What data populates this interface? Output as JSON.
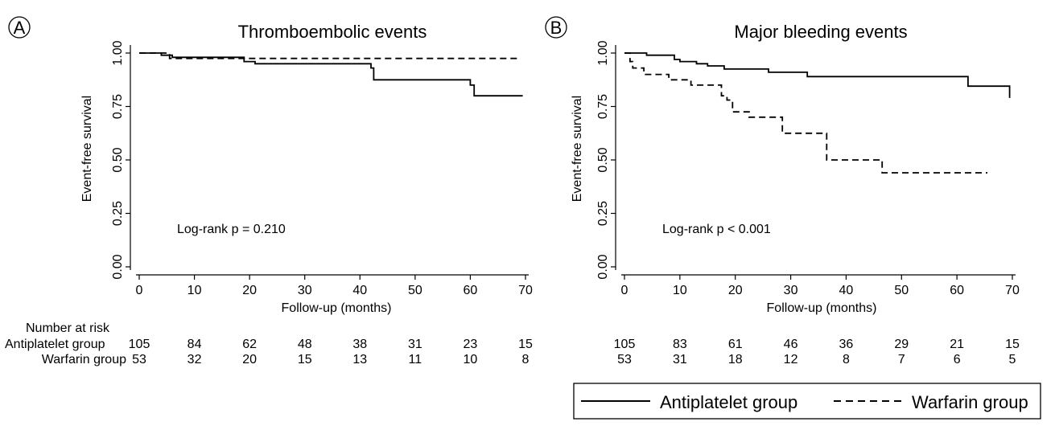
{
  "panel_labels": [
    "A",
    "B"
  ],
  "risk_table": {
    "header": "Number at risk",
    "groups": [
      "Antiplatelet group",
      "Warfarin group"
    ]
  },
  "legend": {
    "antiplatelet": "Antiplatelet group",
    "warfarin": "Warfarin group"
  },
  "chart_data": [
    {
      "type": "line",
      "title": "Thromboembolic events",
      "xlabel": "Follow-up (months)",
      "ylabel": "Event-free survival",
      "xlim": [
        0,
        70
      ],
      "ylim": [
        0,
        1
      ],
      "xticks": [
        "0",
        "10",
        "20",
        "30",
        "40",
        "50",
        "60",
        "70"
      ],
      "yticks": [
        "0.00",
        "0.25",
        "0.50",
        "0.75",
        "1.00"
      ],
      "annotation": "Log-rank p = 0.210",
      "series": [
        {
          "name": "Antiplatelet group",
          "style": "solid",
          "steps": [
            [
              0,
              1.0
            ],
            [
              4,
              0.99
            ],
            [
              6,
              0.98
            ],
            [
              19,
              0.96
            ],
            [
              21,
              0.95
            ],
            [
              42,
              0.93
            ],
            [
              42.5,
              0.875
            ],
            [
              60,
              0.85
            ],
            [
              60.7,
              0.8
            ],
            [
              69.5,
              0.8
            ]
          ]
        },
        {
          "name": "Warfarin group",
          "style": "dashed",
          "steps": [
            [
              0,
              1.0
            ],
            [
              5.5,
              0.975
            ],
            [
              69,
              0.975
            ]
          ]
        }
      ],
      "risk": {
        "Antiplatelet group": [
          "105",
          "84",
          "62",
          "48",
          "38",
          "31",
          "23",
          "15"
        ],
        "Warfarin group": [
          "53",
          "32",
          "20",
          "15",
          "13",
          "11",
          "10",
          "8"
        ]
      }
    },
    {
      "type": "line",
      "title": "Major bleeding events",
      "xlabel": "Follow-up (months)",
      "ylabel": "Event-free survival",
      "xlim": [
        0,
        70
      ],
      "ylim": [
        0,
        1
      ],
      "xticks": [
        "0",
        "10",
        "20",
        "30",
        "40",
        "50",
        "60",
        "70"
      ],
      "yticks": [
        "0.00",
        "0.25",
        "0.50",
        "0.75",
        "1.00"
      ],
      "annotation": "Log-rank p < 0.001",
      "series": [
        {
          "name": "Antiplatelet group",
          "style": "solid",
          "steps": [
            [
              0,
              1.0
            ],
            [
              4,
              0.99
            ],
            [
              9,
              0.97
            ],
            [
              10,
              0.96
            ],
            [
              13,
              0.95
            ],
            [
              15,
              0.94
            ],
            [
              18,
              0.925
            ],
            [
              26,
              0.91
            ],
            [
              33,
              0.89
            ],
            [
              62,
              0.845
            ],
            [
              69.5,
              0.79
            ]
          ]
        },
        {
          "name": "Warfarin group",
          "style": "dashed",
          "steps": [
            [
              0,
              1.0
            ],
            [
              1,
              0.96
            ],
            [
              1.5,
              0.93
            ],
            [
              3.5,
              0.9
            ],
            [
              8,
              0.875
            ],
            [
              12,
              0.85
            ],
            [
              17.5,
              0.8
            ],
            [
              18.5,
              0.78
            ],
            [
              19.5,
              0.725
            ],
            [
              22.5,
              0.7
            ],
            [
              28.5,
              0.625
            ],
            [
              36.5,
              0.5
            ],
            [
              46.5,
              0.44
            ],
            [
              65.5,
              0.44
            ]
          ]
        }
      ],
      "risk": {
        "Antiplatelet group": [
          "105",
          "83",
          "61",
          "46",
          "36",
          "29",
          "21",
          "15"
        ],
        "Warfarin group": [
          "53",
          "31",
          "18",
          "12",
          "8",
          "7",
          "6",
          "5"
        ]
      }
    }
  ]
}
